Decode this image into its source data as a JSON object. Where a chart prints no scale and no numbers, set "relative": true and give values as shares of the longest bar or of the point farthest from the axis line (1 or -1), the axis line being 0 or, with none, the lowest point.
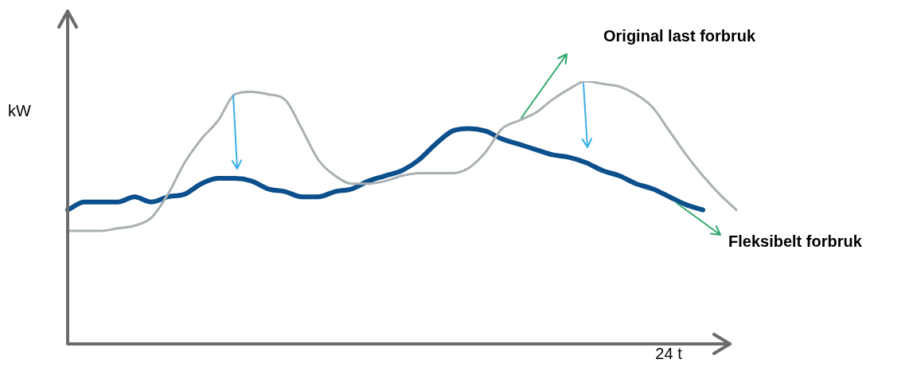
{
  "chart_data": {
    "type": "line",
    "xlabel": "24 t",
    "ylabel": "kW",
    "relative": true,
    "marker": "none",
    "categories": [
      null,
      null,
      null,
      null,
      null,
      null,
      null,
      null,
      null,
      null,
      null,
      null,
      null,
      null,
      null,
      null,
      null,
      null,
      null,
      null,
      null,
      null,
      null,
      null,
      null,
      null,
      null,
      null,
      null,
      null,
      null,
      null,
      null,
      null,
      null,
      null,
      null,
      null,
      null,
      null,
      null
    ],
    "series": [
      {
        "name": "Original last forbruk",
        "color": "#a9b0b3",
        "values": [
          0.43,
          0.43,
          0.43,
          0.44,
          0.45,
          0.48,
          0.57,
          0.69,
          0.78,
          0.85,
          0.95,
          0.96,
          0.95,
          0.93,
          0.82,
          0.7,
          0.64,
          0.61,
          0.61,
          0.62,
          0.64,
          0.65,
          0.65,
          0.65,
          0.67,
          0.73,
          0.82,
          0.85,
          0.88,
          0.93,
          0.97,
          1,
          0.99,
          0.98,
          0.95,
          0.9,
          0.81,
          0.72,
          0.64,
          0.57,
          0.51
        ]
      },
      {
        "name": "Fleksibelt forbruk",
        "color": "#0b4f8c",
        "values": [
          0.51,
          0.54,
          0.54,
          0.54,
          0.56,
          0.54,
          0.56,
          0.57,
          0.61,
          0.63,
          0.63,
          0.62,
          0.59,
          0.58,
          0.56,
          0.56,
          0.58,
          0.59,
          0.62,
          0.64,
          0.66,
          0.7,
          0.76,
          0.81,
          0.82,
          0.81,
          0.78,
          0.76,
          0.74,
          0.72,
          0.71,
          0.69,
          0.66,
          0.64,
          0.61,
          0.59,
          0.56,
          0.53,
          0.51,
          null,
          null
        ]
      }
    ]
  }
}
